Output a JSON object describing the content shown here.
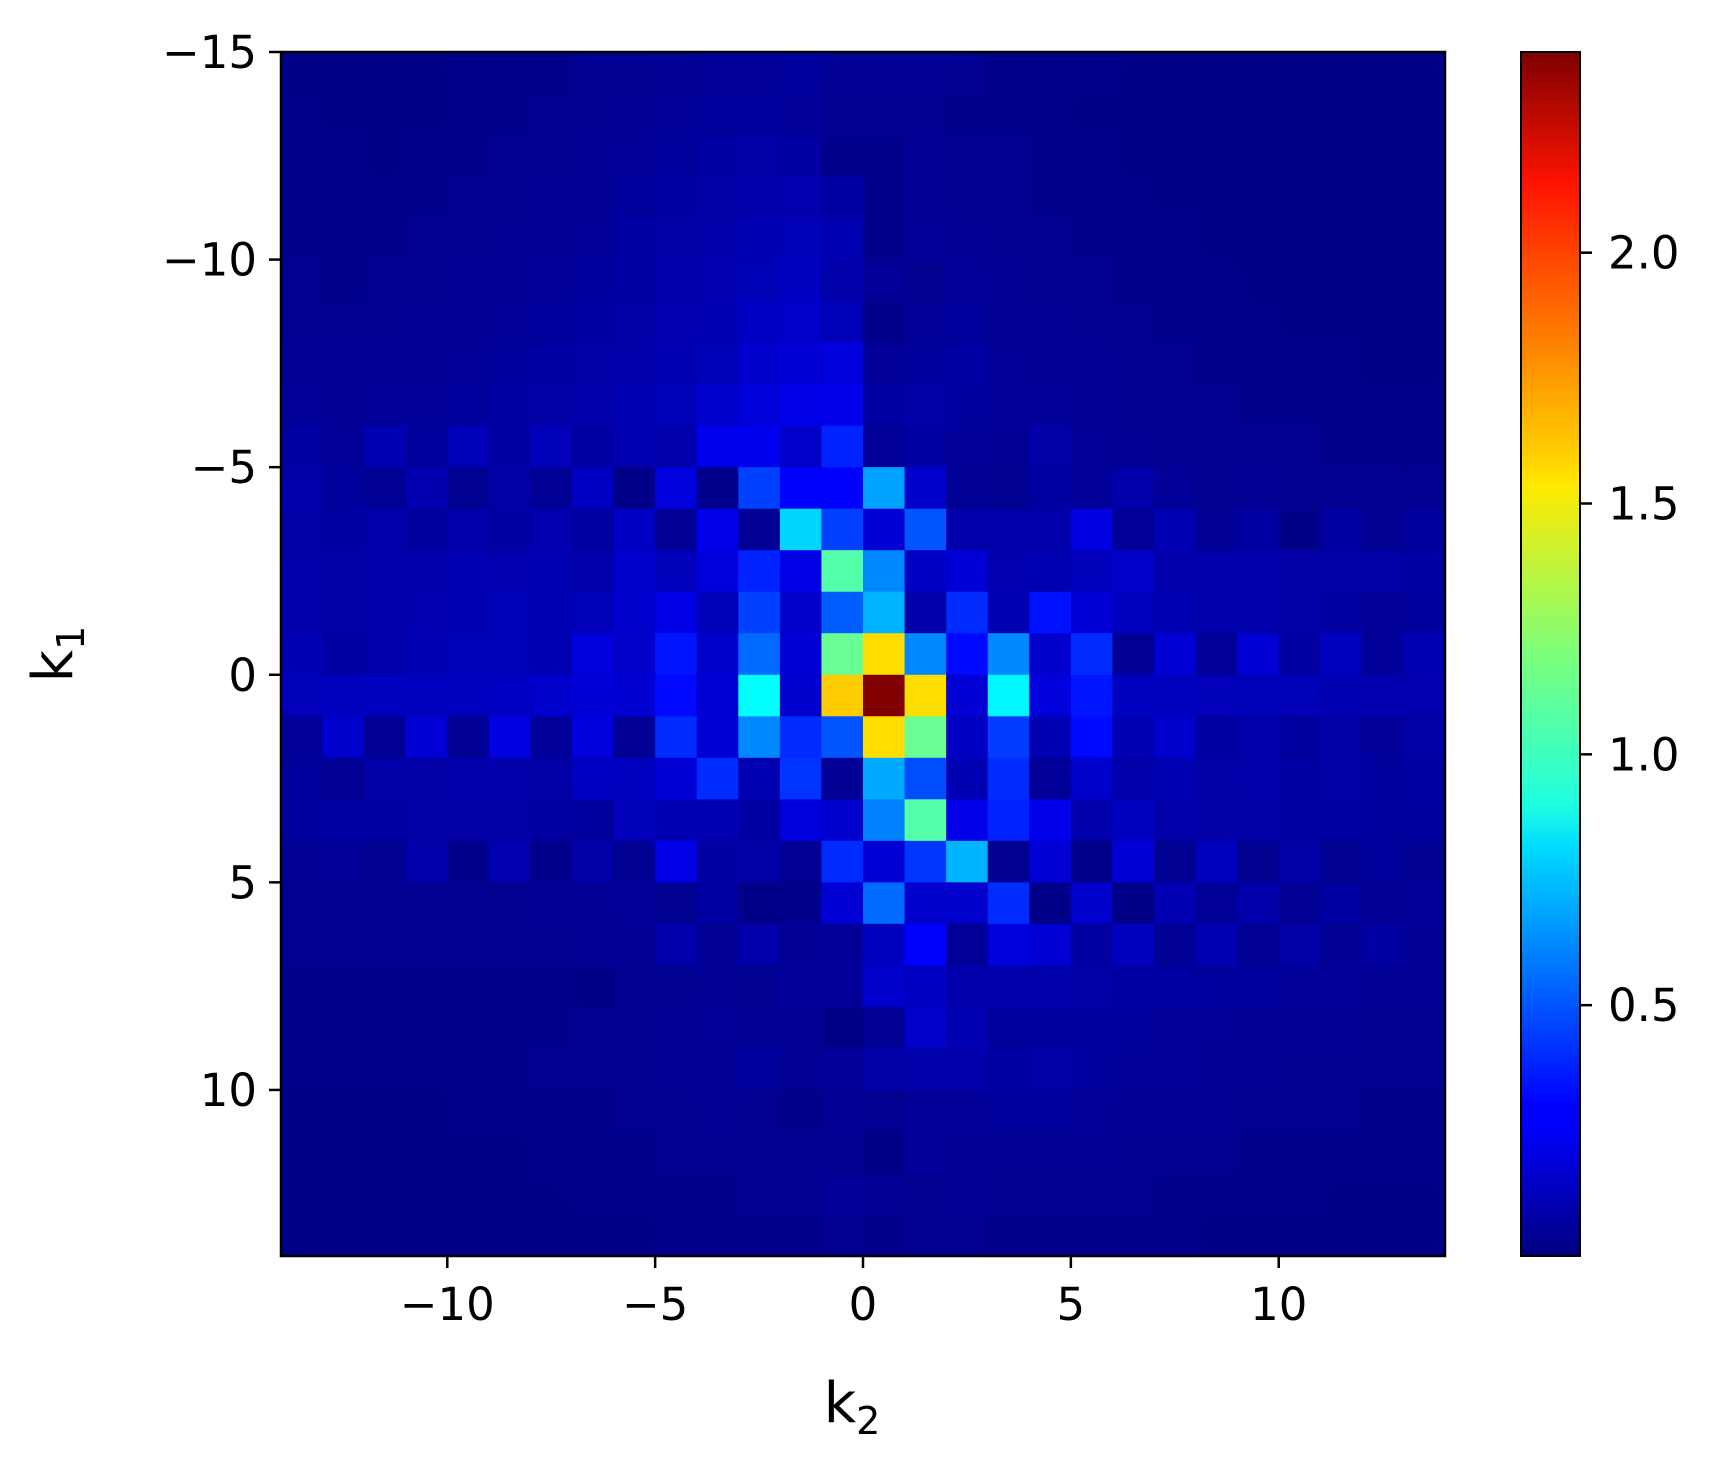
{
  "chart_data": {
    "type": "heatmap",
    "title": "",
    "xlabel": {
      "base": "k",
      "sub": "2"
    },
    "ylabel": {
      "base": "k",
      "sub": "1"
    },
    "x_range": [
      -14,
      14
    ],
    "y_range": [
      -15,
      14
    ],
    "y_inverted": true,
    "x_ticks": [
      -10,
      -5,
      0,
      5,
      10
    ],
    "x_tick_labels": [
      "−10",
      "−5",
      "0",
      "5",
      "10"
    ],
    "y_ticks": [
      -15,
      -10,
      -5,
      0,
      5,
      10
    ],
    "y_tick_labels": [
      "−15",
      "−10",
      "−5",
      "0",
      "5",
      "10"
    ],
    "colormap": "jet",
    "colorbar": {
      "min": 0.0,
      "max": 2.4,
      "ticks": [
        0.5,
        1.0,
        1.5,
        2.0
      ],
      "tick_labels": [
        "0.5",
        "1.0",
        "1.5",
        "2.0"
      ]
    },
    "grid": false,
    "peak": {
      "k1": 0,
      "k2": 0,
      "value": 2.4
    },
    "z": [
      [
        0.02,
        0.02,
        0.02,
        0.02,
        0.03,
        0.03,
        0.03,
        0.04,
        0.04,
        0.05,
        0.06,
        0.06,
        0.07,
        0.05,
        0.05,
        0.05,
        0.04,
        0.03,
        0.03,
        0.03,
        0.02,
        0.02,
        0.02,
        0.02,
        0.02,
        0.02,
        0.02,
        0.02
      ],
      [
        0.03,
        0.02,
        0.02,
        0.02,
        0.03,
        0.03,
        0.04,
        0.04,
        0.05,
        0.06,
        0.07,
        0.07,
        0.06,
        0.04,
        0.04,
        0.04,
        0.03,
        0.03,
        0.03,
        0.02,
        0.02,
        0.02,
        0.02,
        0.02,
        0.02,
        0.02,
        0.02,
        0.02
      ],
      [
        0.03,
        0.03,
        0.02,
        0.03,
        0.03,
        0.04,
        0.04,
        0.05,
        0.06,
        0.07,
        0.08,
        0.09,
        0.08,
        0.03,
        0.03,
        0.05,
        0.04,
        0.04,
        0.03,
        0.03,
        0.02,
        0.02,
        0.02,
        0.02,
        0.02,
        0.02,
        0.02,
        0.02
      ],
      [
        0.03,
        0.03,
        0.03,
        0.03,
        0.04,
        0.04,
        0.05,
        0.05,
        0.07,
        0.08,
        0.09,
        0.1,
        0.11,
        0.08,
        0.03,
        0.05,
        0.04,
        0.04,
        0.03,
        0.03,
        0.03,
        0.02,
        0.02,
        0.02,
        0.02,
        0.02,
        0.02,
        0.02
      ],
      [
        0.03,
        0.03,
        0.03,
        0.04,
        0.04,
        0.05,
        0.05,
        0.06,
        0.08,
        0.09,
        0.1,
        0.12,
        0.13,
        0.12,
        0.03,
        0.06,
        0.05,
        0.04,
        0.04,
        0.03,
        0.03,
        0.03,
        0.02,
        0.02,
        0.02,
        0.02,
        0.02,
        0.02
      ],
      [
        0.04,
        0.03,
        0.04,
        0.04,
        0.05,
        0.05,
        0.06,
        0.07,
        0.08,
        0.1,
        0.11,
        0.13,
        0.15,
        0.1,
        0.06,
        0.04,
        0.06,
        0.05,
        0.04,
        0.04,
        0.03,
        0.03,
        0.03,
        0.02,
        0.02,
        0.02,
        0.02,
        0.02
      ],
      [
        0.04,
        0.04,
        0.04,
        0.05,
        0.05,
        0.06,
        0.07,
        0.08,
        0.09,
        0.11,
        0.12,
        0.16,
        0.17,
        0.13,
        0.03,
        0.06,
        0.07,
        0.05,
        0.05,
        0.04,
        0.04,
        0.03,
        0.03,
        0.03,
        0.02,
        0.02,
        0.02,
        0.02
      ],
      [
        0.05,
        0.05,
        0.05,
        0.05,
        0.06,
        0.07,
        0.08,
        0.09,
        0.1,
        0.12,
        0.13,
        0.18,
        0.2,
        0.22,
        0.06,
        0.07,
        0.08,
        0.06,
        0.05,
        0.05,
        0.04,
        0.04,
        0.03,
        0.03,
        0.03,
        0.03,
        0.02,
        0.02
      ],
      [
        0.06,
        0.05,
        0.06,
        0.06,
        0.07,
        0.08,
        0.09,
        0.1,
        0.12,
        0.14,
        0.18,
        0.21,
        0.24,
        0.25,
        0.08,
        0.09,
        0.07,
        0.06,
        0.06,
        0.05,
        0.04,
        0.04,
        0.04,
        0.03,
        0.03,
        0.03,
        0.03,
        0.03
      ],
      [
        0.08,
        0.06,
        0.12,
        0.07,
        0.14,
        0.08,
        0.14,
        0.08,
        0.12,
        0.1,
        0.26,
        0.26,
        0.17,
        0.38,
        0.06,
        0.08,
        0.06,
        0.05,
        0.09,
        0.06,
        0.05,
        0.04,
        0.04,
        0.04,
        0.04,
        0.03,
        0.03,
        0.03
      ],
      [
        0.1,
        0.07,
        0.05,
        0.11,
        0.04,
        0.09,
        0.05,
        0.16,
        0.02,
        0.22,
        0.03,
        0.45,
        0.3,
        0.3,
        0.68,
        0.18,
        0.05,
        0.04,
        0.08,
        0.06,
        0.1,
        0.06,
        0.04,
        0.05,
        0.04,
        0.04,
        0.04,
        0.04
      ],
      [
        0.09,
        0.08,
        0.1,
        0.07,
        0.1,
        0.08,
        0.11,
        0.08,
        0.16,
        0.05,
        0.25,
        0.05,
        0.8,
        0.45,
        0.2,
        0.5,
        0.1,
        0.1,
        0.1,
        0.23,
        0.06,
        0.12,
        0.05,
        0.08,
        0.02,
        0.08,
        0.04,
        0.07
      ],
      [
        0.1,
        0.09,
        0.1,
        0.1,
        0.12,
        0.11,
        0.12,
        0.1,
        0.18,
        0.14,
        0.22,
        0.38,
        0.24,
        1.1,
        0.62,
        0.16,
        0.2,
        0.11,
        0.12,
        0.14,
        0.17,
        0.1,
        0.1,
        0.1,
        0.09,
        0.09,
        0.09,
        0.08
      ],
      [
        0.1,
        0.09,
        0.1,
        0.11,
        0.12,
        0.13,
        0.12,
        0.14,
        0.18,
        0.24,
        0.14,
        0.45,
        0.17,
        0.52,
        0.72,
        0.1,
        0.4,
        0.12,
        0.34,
        0.2,
        0.15,
        0.12,
        0.1,
        0.1,
        0.09,
        0.08,
        0.06,
        0.07
      ],
      [
        0.12,
        0.08,
        0.1,
        0.12,
        0.13,
        0.13,
        0.12,
        0.22,
        0.17,
        0.35,
        0.18,
        0.55,
        0.2,
        1.15,
        1.58,
        0.62,
        0.32,
        0.62,
        0.18,
        0.4,
        0.05,
        0.2,
        0.06,
        0.2,
        0.08,
        0.15,
        0.06,
        0.12
      ],
      [
        0.14,
        0.15,
        0.15,
        0.15,
        0.15,
        0.16,
        0.18,
        0.2,
        0.19,
        0.32,
        0.2,
        0.9,
        0.18,
        1.62,
        2.4,
        1.58,
        0.2,
        0.88,
        0.22,
        0.35,
        0.15,
        0.15,
        0.14,
        0.13,
        0.13,
        0.12,
        0.11,
        0.11
      ],
      [
        0.06,
        0.18,
        0.05,
        0.2,
        0.05,
        0.23,
        0.06,
        0.22,
        0.05,
        0.4,
        0.2,
        0.62,
        0.4,
        0.5,
        1.58,
        1.15,
        0.16,
        0.44,
        0.12,
        0.32,
        0.12,
        0.18,
        0.08,
        0.1,
        0.07,
        0.09,
        0.06,
        0.09
      ],
      [
        0.07,
        0.05,
        0.09,
        0.09,
        0.1,
        0.1,
        0.09,
        0.16,
        0.15,
        0.2,
        0.4,
        0.12,
        0.42,
        0.05,
        0.7,
        0.48,
        0.12,
        0.4,
        0.06,
        0.18,
        0.1,
        0.12,
        0.09,
        0.1,
        0.08,
        0.09,
        0.07,
        0.08
      ],
      [
        0.07,
        0.08,
        0.08,
        0.09,
        0.09,
        0.09,
        0.08,
        0.07,
        0.14,
        0.12,
        0.12,
        0.08,
        0.22,
        0.18,
        0.6,
        1.1,
        0.25,
        0.38,
        0.25,
        0.1,
        0.15,
        0.1,
        0.09,
        0.09,
        0.08,
        0.08,
        0.07,
        0.07
      ],
      [
        0.05,
        0.06,
        0.04,
        0.1,
        0.03,
        0.11,
        0.03,
        0.09,
        0.04,
        0.24,
        0.08,
        0.09,
        0.05,
        0.4,
        0.2,
        0.43,
        0.72,
        0.04,
        0.2,
        0.03,
        0.2,
        0.04,
        0.15,
        0.04,
        0.09,
        0.04,
        0.07,
        0.04
      ],
      [
        0.04,
        0.04,
        0.04,
        0.04,
        0.04,
        0.04,
        0.05,
        0.05,
        0.06,
        0.04,
        0.08,
        0.02,
        0.03,
        0.2,
        0.55,
        0.18,
        0.18,
        0.4,
        0.02,
        0.18,
        0.02,
        0.12,
        0.06,
        0.1,
        0.05,
        0.08,
        0.05,
        0.06
      ],
      [
        0.04,
        0.04,
        0.04,
        0.04,
        0.04,
        0.04,
        0.04,
        0.05,
        0.05,
        0.1,
        0.05,
        0.1,
        0.05,
        0.06,
        0.15,
        0.3,
        0.06,
        0.22,
        0.2,
        0.08,
        0.15,
        0.05,
        0.12,
        0.05,
        0.09,
        0.05,
        0.08,
        0.05
      ],
      [
        0.03,
        0.03,
        0.03,
        0.03,
        0.03,
        0.03,
        0.03,
        0.02,
        0.04,
        0.04,
        0.05,
        0.04,
        0.06,
        0.06,
        0.18,
        0.16,
        0.1,
        0.1,
        0.1,
        0.09,
        0.08,
        0.08,
        0.07,
        0.07,
        0.06,
        0.06,
        0.05,
        0.05
      ],
      [
        0.03,
        0.03,
        0.03,
        0.03,
        0.03,
        0.03,
        0.03,
        0.04,
        0.04,
        0.05,
        0.06,
        0.05,
        0.05,
        0.02,
        0.05,
        0.17,
        0.12,
        0.07,
        0.07,
        0.07,
        0.07,
        0.06,
        0.06,
        0.05,
        0.05,
        0.05,
        0.04,
        0.04
      ],
      [
        0.03,
        0.03,
        0.03,
        0.03,
        0.03,
        0.03,
        0.04,
        0.04,
        0.04,
        0.05,
        0.05,
        0.07,
        0.05,
        0.06,
        0.09,
        0.1,
        0.1,
        0.08,
        0.09,
        0.07,
        0.06,
        0.06,
        0.05,
        0.05,
        0.04,
        0.04,
        0.04,
        0.04
      ],
      [
        0.02,
        0.02,
        0.02,
        0.02,
        0.03,
        0.03,
        0.03,
        0.03,
        0.04,
        0.04,
        0.05,
        0.04,
        0.03,
        0.05,
        0.04,
        0.06,
        0.06,
        0.07,
        0.07,
        0.06,
        0.05,
        0.05,
        0.05,
        0.04,
        0.04,
        0.04,
        0.03,
        0.03
      ],
      [
        0.02,
        0.02,
        0.02,
        0.02,
        0.02,
        0.02,
        0.03,
        0.03,
        0.03,
        0.04,
        0.04,
        0.04,
        0.04,
        0.04,
        0.02,
        0.06,
        0.05,
        0.05,
        0.05,
        0.05,
        0.04,
        0.04,
        0.04,
        0.03,
        0.03,
        0.03,
        0.03,
        0.03
      ],
      [
        0.02,
        0.02,
        0.02,
        0.02,
        0.02,
        0.02,
        0.02,
        0.03,
        0.03,
        0.03,
        0.03,
        0.04,
        0.04,
        0.06,
        0.05,
        0.04,
        0.05,
        0.04,
        0.04,
        0.04,
        0.04,
        0.03,
        0.03,
        0.03,
        0.03,
        0.02,
        0.02,
        0.02
      ],
      [
        0.02,
        0.02,
        0.02,
        0.02,
        0.02,
        0.02,
        0.02,
        0.02,
        0.02,
        0.03,
        0.03,
        0.03,
        0.03,
        0.04,
        0.03,
        0.04,
        0.04,
        0.03,
        0.03,
        0.03,
        0.03,
        0.03,
        0.02,
        0.02,
        0.02,
        0.02,
        0.02,
        0.02
      ]
    ]
  }
}
